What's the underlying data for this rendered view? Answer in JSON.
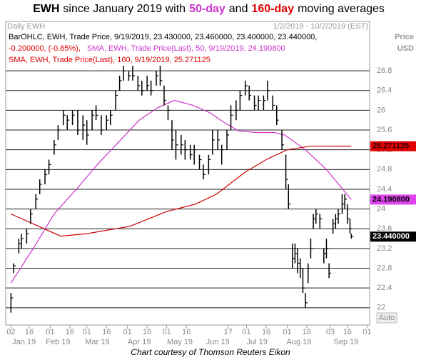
{
  "chart_data": {
    "type": "ohlc",
    "title_parts": [
      {
        "text": "EWH",
        "color": "#000000",
        "bold": true
      },
      {
        "text": "since January 2019 with",
        "color": "#000000",
        "bold": false
      },
      {
        "text": "50-day",
        "color": "#cc33cc",
        "bold": true
      },
      {
        "text": "and",
        "color": "#000000",
        "bold": false
      },
      {
        "text": "160-day",
        "color": "#e00000",
        "bold": true
      },
      {
        "text": "moving averages",
        "color": "#000000",
        "bold": false
      }
    ],
    "header_left": "Daily EWH",
    "header_right": "1/2/2019 - 10/2/2019 (EST)",
    "axis_unit_lines": [
      "Price",
      "USD"
    ],
    "legend_lines": [
      {
        "text": "BarOHLC, EWH, Trade Price, 9/19/2019, 23.430000, 23.460000, 23.400000, 23.440000,",
        "color": "#000000"
      },
      {
        "text": "-0.200000, (-0.85%),",
        "color": "#e00000"
      },
      {
        "text": "SMA, EWH, Trade Price(Last),  50, 9/19/2019, 24.190800",
        "color": "#cc33cc"
      },
      {
        "text": "SMA, EWH, Trade Price(Last),  160, 9/19/2019, 25.271125",
        "color": "#e00000"
      }
    ],
    "auto_label": "Auto",
    "footer": "Chart courtesy of Thomson Reuters Eikon",
    "bar_color": "#000000",
    "x": [
      2,
      4,
      8,
      10,
      14,
      17,
      21,
      24,
      28,
      31,
      35,
      38,
      42,
      45,
      49,
      53,
      57,
      60,
      64,
      67,
      71,
      75,
      78,
      82,
      85,
      88,
      92,
      95,
      99,
      102,
      106,
      109,
      113,
      116,
      119,
      122,
      125,
      128,
      132,
      135,
      139,
      142,
      146,
      149,
      153,
      156,
      160,
      163,
      167,
      170,
      174,
      177,
      181,
      184,
      188,
      191,
      195,
      198,
      202,
      205,
      209,
      212,
      214,
      217,
      219,
      221,
      223,
      225,
      227,
      229,
      231,
      233,
      235,
      238,
      241,
      243,
      245,
      248,
      250,
      252,
      255,
      257,
      259,
      261,
      262
    ],
    "high": [
      22.3,
      22.9,
      23.4,
      23.5,
      23.6,
      24.0,
      24.3,
      24.6,
      24.8,
      25.0,
      25.4,
      25.7,
      26.0,
      25.9,
      26.0,
      26.0,
      25.9,
      25.8,
      26.0,
      26.1,
      25.9,
      25.9,
      26.0,
      26.4,
      26.7,
      26.9,
      26.8,
      26.9,
      26.7,
      26.6,
      26.7,
      26.6,
      26.8,
      26.9,
      26.5,
      26.1,
      25.8,
      25.6,
      25.5,
      25.4,
      25.3,
      25.3,
      25.1,
      24.9,
      25.1,
      25.6,
      25.6,
      25.3,
      25.6,
      26.1,
      26.2,
      26.4,
      26.6,
      26.5,
      26.3,
      26.3,
      26.3,
      26.6,
      26.3,
      26.1,
      25.6,
      25.1,
      24.5,
      23.3,
      23.3,
      23.2,
      23.0,
      22.8,
      22.3,
      22.9,
      23.4,
      23.9,
      24.0,
      23.9,
      23.2,
      23.4,
      22.9,
      23.8,
      23.9,
      24.0,
      24.3,
      24.3,
      24.1,
      23.8,
      23.5
    ],
    "low": [
      21.9,
      22.7,
      23.1,
      23.2,
      23.3,
      23.7,
      24.0,
      24.3,
      24.5,
      24.7,
      25.1,
      25.4,
      25.7,
      25.6,
      25.7,
      25.5,
      25.4,
      25.3,
      25.6,
      25.8,
      25.5,
      25.6,
      25.7,
      26.0,
      26.4,
      26.6,
      26.6,
      26.6,
      26.4,
      26.3,
      26.4,
      26.3,
      26.5,
      26.5,
      26.1,
      25.8,
      25.2,
      25.0,
      25.1,
      25.0,
      25.0,
      24.9,
      24.8,
      24.6,
      24.7,
      25.1,
      25.2,
      24.9,
      25.2,
      25.6,
      25.8,
      26.0,
      26.3,
      26.2,
      26.0,
      26.0,
      26.0,
      26.2,
      26.0,
      25.7,
      25.2,
      24.4,
      24.0,
      22.8,
      22.9,
      22.7,
      22.6,
      22.3,
      22.0,
      22.5,
      23.0,
      23.6,
      23.7,
      23.6,
      22.9,
      23.0,
      22.6,
      23.5,
      23.6,
      23.7,
      23.9,
      24.0,
      23.7,
      23.5,
      23.4
    ],
    "close": [
      22.2,
      22.85,
      23.3,
      23.4,
      23.5,
      23.9,
      24.2,
      24.5,
      24.7,
      24.9,
      25.3,
      25.6,
      25.9,
      25.8,
      25.9,
      25.6,
      25.7,
      25.5,
      25.9,
      25.9,
      25.6,
      25.8,
      25.9,
      26.3,
      26.6,
      26.8,
      26.7,
      26.7,
      26.5,
      26.4,
      26.5,
      26.4,
      26.7,
      26.6,
      26.2,
      26.0,
      25.4,
      25.3,
      25.3,
      25.2,
      25.1,
      25.2,
      25.0,
      24.7,
      25.0,
      25.4,
      25.4,
      25.2,
      25.5,
      25.9,
      26.0,
      26.3,
      26.5,
      26.3,
      26.1,
      26.2,
      26.2,
      26.4,
      26.1,
      25.8,
      25.3,
      24.6,
      24.1,
      23.0,
      23.1,
      22.9,
      22.8,
      22.4,
      22.1,
      22.8,
      23.2,
      23.8,
      23.9,
      23.8,
      23.1,
      23.2,
      22.7,
      23.7,
      23.8,
      23.9,
      24.1,
      24.2,
      23.8,
      23.6,
      23.44
    ],
    "series": [
      {
        "name": "SMA 50",
        "color": "#cc33cc",
        "x": [
          2,
          19,
          35,
          52,
          68,
          84,
          100,
          114,
          127,
          141,
          154,
          165,
          176,
          190,
          203,
          211,
          227,
          243,
          257,
          262
        ],
        "values": [
          22.5,
          23.2,
          23.9,
          24.4,
          24.9,
          25.35,
          25.8,
          26.05,
          26.2,
          26.1,
          25.95,
          25.75,
          25.58,
          25.55,
          25.55,
          25.5,
          25.2,
          24.8,
          24.35,
          24.1908
        ]
      },
      {
        "name": "SMA 160",
        "color": "#cc0000",
        "x": [
          2,
          40,
          60,
          93,
          121,
          143,
          159,
          181,
          197,
          213,
          230,
          262
        ],
        "values": [
          23.9,
          23.45,
          23.5,
          23.65,
          23.95,
          24.1,
          24.3,
          24.75,
          25.0,
          25.2,
          25.27,
          25.271125
        ]
      }
    ],
    "tags": [
      {
        "value": 25.271125,
        "label": "25.271125",
        "color": "#e00000",
        "text_color": "#330000"
      },
      {
        "value": 24.1908,
        "label": "24.190800",
        "color": "#dd44ee",
        "text_color": "#000000"
      },
      {
        "value": 23.44,
        "label": "23.440000",
        "color": "#000000",
        "text_color": "#ffffff"
      }
    ],
    "xlim": [
      -2,
      276
    ],
    "ylim": [
      21.65,
      27.8
    ],
    "yticks": [
      22,
      22.4,
      22.8,
      23.2,
      23.6,
      24,
      24.4,
      24.8,
      25.2,
      25.6,
      26,
      26.4,
      26.8
    ],
    "xticks": [
      {
        "value": 2,
        "label": "02"
      },
      {
        "value": 16,
        "label": "16"
      },
      {
        "value": 32,
        "label": "01"
      },
      {
        "value": 47,
        "label": "16"
      },
      {
        "value": 60,
        "label": "01"
      },
      {
        "value": 75,
        "label": "16"
      },
      {
        "value": 91,
        "label": "01"
      },
      {
        "value": 106,
        "label": "16"
      },
      {
        "value": 121,
        "label": "01"
      },
      {
        "value": 136,
        "label": "16"
      },
      {
        "value": 168,
        "label": "17"
      },
      {
        "value": 182,
        "label": "01"
      },
      {
        "value": 197,
        "label": "16"
      },
      {
        "value": 213,
        "label": "01"
      },
      {
        "value": 228,
        "label": "16"
      },
      {
        "value": 246,
        "label": "03"
      },
      {
        "value": 259,
        "label": "16"
      },
      {
        "value": 274,
        "label": "01"
      }
    ],
    "month_labels": [
      {
        "value": 12,
        "label": "Jan 19"
      },
      {
        "value": 38,
        "label": "Feb 19"
      },
      {
        "value": 68,
        "label": "Mar 19"
      },
      {
        "value": 100,
        "label": "Apr 19"
      },
      {
        "value": 131,
        "label": "May 19"
      },
      {
        "value": 160,
        "label": "Jun 19"
      },
      {
        "value": 190,
        "label": "Jul 19"
      },
      {
        "value": 222,
        "label": "Aug 19"
      },
      {
        "value": 258,
        "label": "Sep 19"
      }
    ],
    "grid": true
  }
}
